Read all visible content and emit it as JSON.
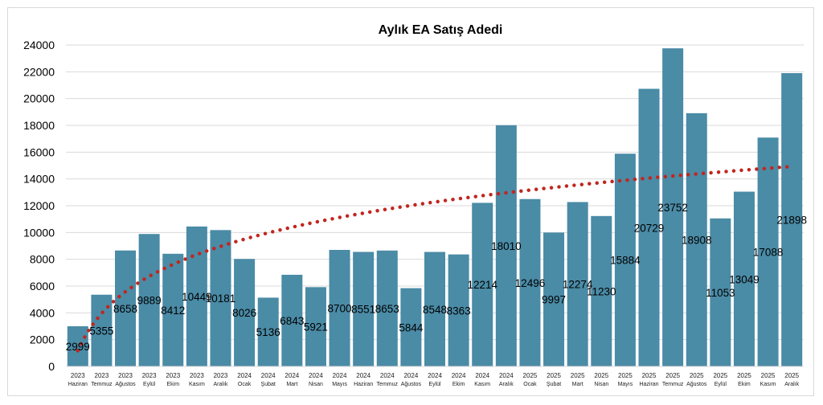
{
  "chart_data": {
    "type": "bar",
    "title": "Aylık EA Satış Adedi",
    "xlabel": "",
    "ylabel": "",
    "ylim": [
      0,
      24000
    ],
    "yticks": [
      0,
      2000,
      4000,
      6000,
      8000,
      10000,
      12000,
      14000,
      16000,
      18000,
      20000,
      22000,
      24000
    ],
    "grid": true,
    "legend": "none",
    "bar_color": "#4a8ba6",
    "trendline": {
      "type": "logarithmic",
      "color": "#c0261f",
      "style": "dotted"
    },
    "categories": [
      [
        "2023",
        "Haziran"
      ],
      [
        "2023",
        "Temmuz"
      ],
      [
        "2023",
        "Ağustos"
      ],
      [
        "2023",
        "Eylül"
      ],
      [
        "2023",
        "Ekim"
      ],
      [
        "2023",
        "Kasım"
      ],
      [
        "2023",
        "Aralık"
      ],
      [
        "2024",
        "Ocak"
      ],
      [
        "2024",
        "Şubat"
      ],
      [
        "2024",
        "Mart"
      ],
      [
        "2024",
        "Nisan"
      ],
      [
        "2024",
        "Mayıs"
      ],
      [
        "2024",
        "Haziran"
      ],
      [
        "2024",
        "Temmuz"
      ],
      [
        "2024",
        "Ağustos"
      ],
      [
        "2024",
        "Eylül"
      ],
      [
        "2024",
        "Ekim"
      ],
      [
        "2024",
        "Kasım"
      ],
      [
        "2024",
        "Aralık"
      ],
      [
        "2025",
        "Ocak"
      ],
      [
        "2025",
        "Şubat"
      ],
      [
        "2025",
        "Mart"
      ],
      [
        "2025",
        "Nisan"
      ],
      [
        "2025",
        "Mayıs"
      ],
      [
        "2025",
        "Haziran"
      ],
      [
        "2025",
        "Temmuz"
      ],
      [
        "2025",
        "Ağustos"
      ],
      [
        "2025",
        "Eylül"
      ],
      [
        "2025",
        "Ekim"
      ],
      [
        "2025",
        "Kasım"
      ],
      [
        "2025",
        "Aralık"
      ]
    ],
    "values": [
      2999,
      5355,
      8658,
      9889,
      8412,
      10449,
      10181,
      8026,
      5136,
      6843,
      5921,
      8700,
      8551,
      8653,
      5844,
      8548,
      8363,
      12214,
      18010,
      12496,
      9997,
      12274,
      11230,
      15884,
      20729,
      23752,
      18908,
      11053,
      13049,
      17088,
      21898
    ]
  }
}
